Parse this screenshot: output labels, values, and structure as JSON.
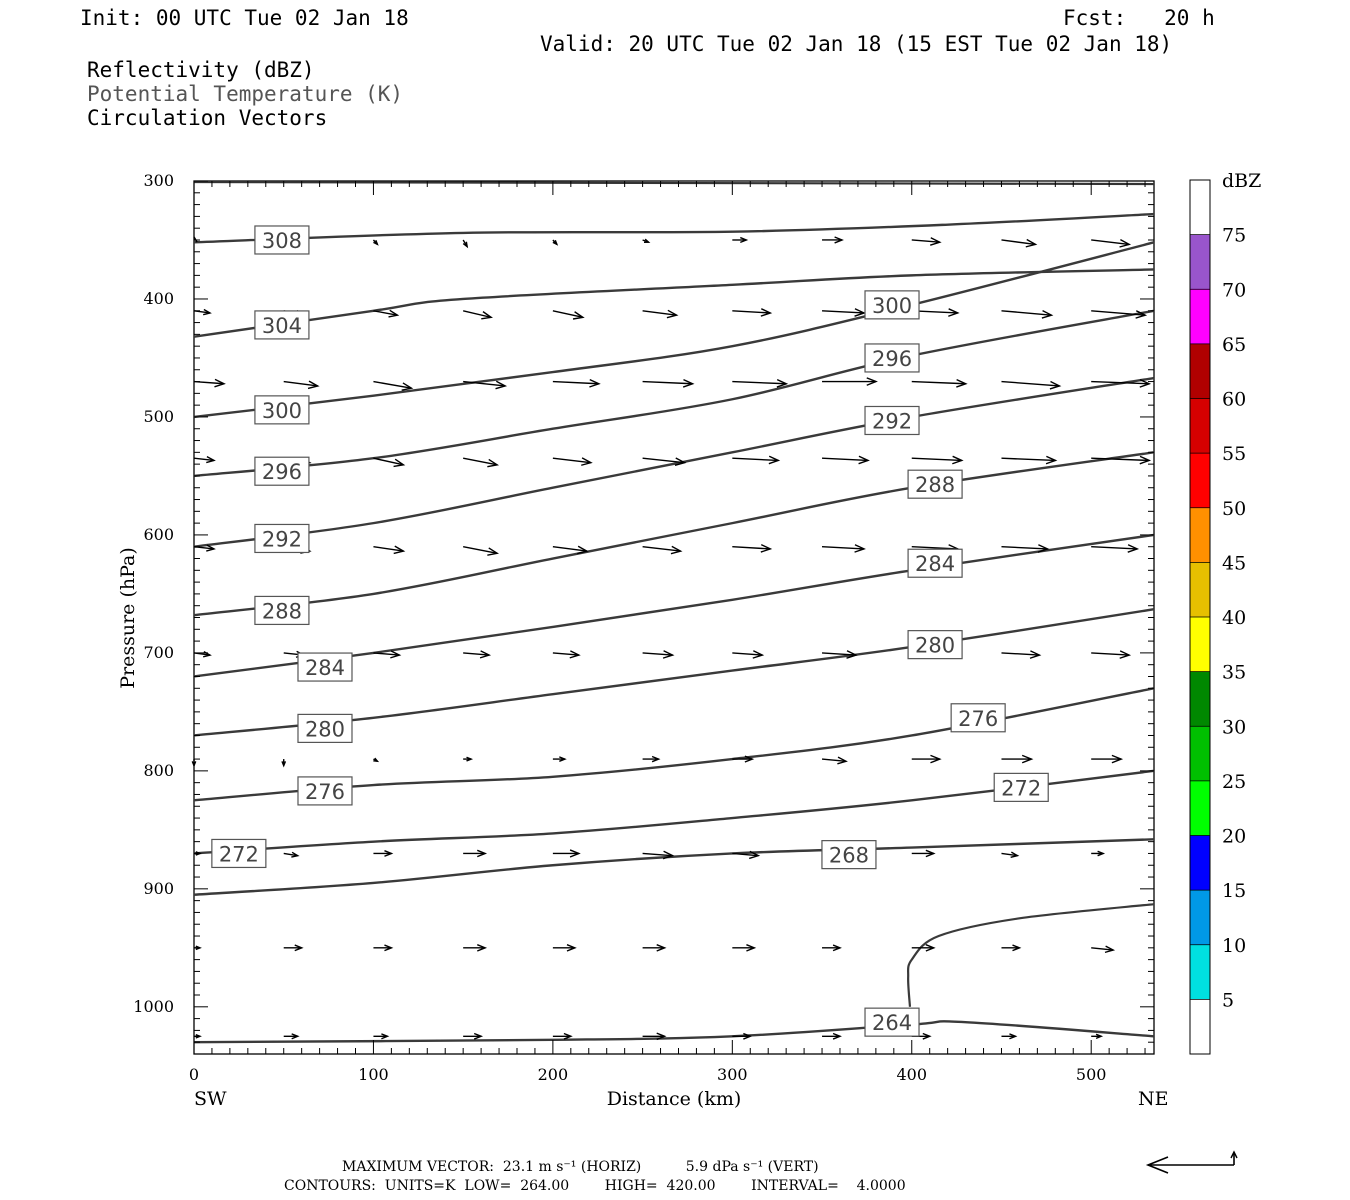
{
  "header": {
    "init": "Init: 00 UTC Tue 02 Jan 18",
    "fcst": "Fcst:   20 h",
    "valid": "Valid: 20 UTC Tue 02 Jan 18 (15 EST Tue 02 Jan 18)",
    "field1": "Reflectivity (dBZ)",
    "field2": "Potential Temperature (K)",
    "field3": "Circulation Vectors"
  },
  "chart_data": {
    "type": "cross-section",
    "xlabel": "Distance (km)",
    "ylabel": "Pressure (hPa)",
    "x_left_label": "SW",
    "x_right_label": "NE",
    "xlim": [
      0,
      535
    ],
    "ylim": [
      300,
      1040
    ],
    "x_ticks": [
      0,
      100,
      200,
      300,
      400,
      500
    ],
    "y_ticks": [
      300,
      400,
      500,
      600,
      700,
      800,
      900,
      1000
    ],
    "colorbar": {
      "label": "dBZ",
      "levels": [
        5,
        10,
        15,
        20,
        25,
        30,
        35,
        40,
        45,
        50,
        55,
        60,
        65,
        70,
        75
      ],
      "colors": [
        "#ffffff",
        "#00e0e0",
        "#0099e6",
        "#0000ff",
        "#00ff00",
        "#00c000",
        "#008800",
        "#ffff00",
        "#e6c000",
        "#ff9000",
        "#ff0000",
        "#d60000",
        "#b00000",
        "#ff00ff",
        "#9955cc",
        "#ffffff"
      ]
    },
    "isentropes": [
      {
        "theta": 308,
        "points": [
          [
            0,
            352
          ],
          [
            150,
            344
          ],
          [
            300,
            343
          ],
          [
            420,
            337
          ],
          [
            535,
            328
          ]
        ]
      },
      {
        "theta": 304,
        "points": [
          [
            0,
            432
          ],
          [
            100,
            410
          ],
          [
            150,
            400
          ],
          [
            300,
            388
          ],
          [
            400,
            380
          ],
          [
            535,
            375
          ]
        ]
      },
      {
        "theta": 300,
        "points": [
          [
            0,
            500
          ],
          [
            100,
            482
          ],
          [
            200,
            462
          ],
          [
            300,
            440
          ],
          [
            400,
            405
          ],
          [
            535,
            352
          ]
        ]
      },
      {
        "theta": 296,
        "points": [
          [
            0,
            550
          ],
          [
            100,
            535
          ],
          [
            200,
            510
          ],
          [
            300,
            485
          ],
          [
            400,
            448
          ],
          [
            535,
            410
          ]
        ]
      },
      {
        "theta": 292,
        "points": [
          [
            0,
            610
          ],
          [
            100,
            590
          ],
          [
            200,
            560
          ],
          [
            300,
            530
          ],
          [
            400,
            500
          ],
          [
            535,
            467
          ]
        ]
      },
      {
        "theta": 288,
        "points": [
          [
            0,
            668
          ],
          [
            100,
            650
          ],
          [
            200,
            620
          ],
          [
            300,
            590
          ],
          [
            400,
            560
          ],
          [
            535,
            530
          ]
        ]
      },
      {
        "theta": 284,
        "points": [
          [
            0,
            720
          ],
          [
            100,
            700
          ],
          [
            200,
            678
          ],
          [
            300,
            655
          ],
          [
            400,
            630
          ],
          [
            535,
            600
          ]
        ]
      },
      {
        "theta": 280,
        "points": [
          [
            0,
            770
          ],
          [
            100,
            755
          ],
          [
            200,
            735
          ],
          [
            300,
            715
          ],
          [
            400,
            695
          ],
          [
            535,
            663
          ]
        ]
      },
      {
        "theta": 276,
        "points": [
          [
            0,
            825
          ],
          [
            100,
            812
          ],
          [
            200,
            805
          ],
          [
            300,
            790
          ],
          [
            400,
            770
          ],
          [
            535,
            730
          ]
        ]
      },
      {
        "theta": 272,
        "points": [
          [
            0,
            870
          ],
          [
            100,
            860
          ],
          [
            200,
            853
          ],
          [
            300,
            840
          ],
          [
            400,
            825
          ],
          [
            535,
            800
          ]
        ]
      },
      {
        "theta": 268,
        "points": [
          [
            0,
            905
          ],
          [
            100,
            895
          ],
          [
            200,
            880
          ],
          [
            300,
            870
          ],
          [
            400,
            865
          ],
          [
            535,
            858
          ]
        ]
      },
      {
        "theta": 264,
        "points": [
          [
            0,
            1030
          ],
          [
            200,
            1028
          ],
          [
            300,
            1025
          ],
          [
            400,
            1015
          ],
          [
            430,
            1013
          ],
          [
            535,
            1025
          ]
        ]
      }
    ],
    "wedge_264": [
      [
        399,
        1000
      ],
      [
        398,
        975
      ],
      [
        400,
        960
      ],
      [
        415,
        940
      ],
      [
        460,
        925
      ],
      [
        535,
        913
      ]
    ],
    "contour_labels": [
      {
        "text": "308",
        "x": 49,
        "p": 350
      },
      {
        "text": "304",
        "x": 49,
        "p": 422
      },
      {
        "text": "300",
        "x": 49,
        "p": 494
      },
      {
        "text": "296",
        "x": 49,
        "p": 546
      },
      {
        "text": "292",
        "x": 49,
        "p": 603
      },
      {
        "text": "288",
        "x": 49,
        "p": 664
      },
      {
        "text": "284",
        "x": 73,
        "p": 712
      },
      {
        "text": "280",
        "x": 73,
        "p": 764
      },
      {
        "text": "276",
        "x": 73,
        "p": 817
      },
      {
        "text": "272",
        "x": 25,
        "p": 870
      },
      {
        "text": "300",
        "x": 389,
        "p": 405
      },
      {
        "text": "296",
        "x": 389,
        "p": 450
      },
      {
        "text": "292",
        "x": 389,
        "p": 503
      },
      {
        "text": "288",
        "x": 413,
        "p": 557
      },
      {
        "text": "284",
        "x": 413,
        "p": 624
      },
      {
        "text": "280",
        "x": 413,
        "p": 693
      },
      {
        "text": "276",
        "x": 437,
        "p": 755
      },
      {
        "text": "272",
        "x": 461,
        "p": 814
      },
      {
        "text": "268",
        "x": 365,
        "p": 871
      },
      {
        "text": "264",
        "x": 389,
        "p": 1013
      }
    ],
    "vectors": {
      "x": [
        0,
        50,
        100,
        150,
        200,
        250,
        300,
        350,
        400,
        450,
        500
      ],
      "rows": [
        {
          "p": 350,
          "u": [
            0,
            0,
            2,
            2,
            2,
            3,
            7,
            10,
            14,
            17,
            19
          ],
          "w": [
            0,
            0,
            2,
            3,
            2,
            1,
            0,
            0,
            1,
            2,
            2
          ]
        },
        {
          "p": 410,
          "u": [
            8,
            10,
            12,
            14,
            15,
            17,
            19,
            21,
            23,
            25,
            27
          ],
          "w": [
            1,
            2,
            2,
            3,
            3,
            2,
            1,
            1,
            1,
            2,
            2
          ]
        },
        {
          "p": 470,
          "u": [
            15,
            17,
            19,
            21,
            23,
            25,
            27,
            27,
            27,
            29,
            29
          ],
          "w": [
            1,
            2,
            3,
            2,
            1,
            1,
            1,
            0,
            1,
            2,
            1
          ]
        },
        {
          "p": 535,
          "u": [
            10,
            13,
            15,
            17,
            19,
            21,
            23,
            23,
            25,
            27,
            29
          ],
          "w": [
            1,
            2,
            3,
            3,
            2,
            2,
            1,
            1,
            1,
            1,
            1
          ]
        },
        {
          "p": 610,
          "u": [
            10,
            13,
            15,
            17,
            17,
            19,
            19,
            21,
            23,
            23,
            23
          ],
          "w": [
            1,
            2,
            2,
            3,
            2,
            2,
            1,
            1,
            1,
            1,
            1
          ]
        },
        {
          "p": 700,
          "u": [
            8,
            10,
            13,
            13,
            13,
            15,
            15,
            17,
            19,
            19,
            19
          ],
          "w": [
            1,
            1,
            1,
            1,
            1,
            1,
            1,
            1,
            1,
            1,
            1
          ]
        },
        {
          "p": 790,
          "u": [
            0,
            0,
            2,
            4,
            6,
            8,
            10,
            12,
            14,
            15,
            15
          ],
          "w": [
            3,
            3,
            1,
            0,
            0,
            0,
            0,
            1,
            0,
            0,
            0
          ]
        },
        {
          "p": 870,
          "u": [
            3,
            7,
            9,
            11,
            13,
            15,
            13,
            11,
            11,
            8,
            6
          ],
          "w": [
            0,
            1,
            0,
            0,
            0,
            1,
            1,
            0,
            0,
            1,
            0
          ]
        },
        {
          "p": 950,
          "u": [
            3,
            9,
            9,
            11,
            11,
            11,
            11,
            9,
            11,
            9,
            11
          ],
          "w": [
            0,
            0,
            0,
            0,
            0,
            0,
            0,
            0,
            0,
            0,
            1
          ]
        },
        {
          "p": 1025,
          "u": [
            3,
            7,
            7,
            9,
            9,
            11,
            9,
            9,
            9,
            7,
            5
          ],
          "w": [
            0,
            0,
            0,
            0,
            0,
            0,
            0,
            0,
            0,
            0,
            0
          ]
        }
      ]
    },
    "max_vector_text": "MAXIMUM VECTOR:  23.1 m s⁻¹ (HORIZ)          5.9 dPa s⁻¹ (VERT)",
    "contours_text": "CONTOURS:  UNITS=K  LOW=  264.00        HIGH=  420.00        INTERVAL=    4.0000"
  }
}
